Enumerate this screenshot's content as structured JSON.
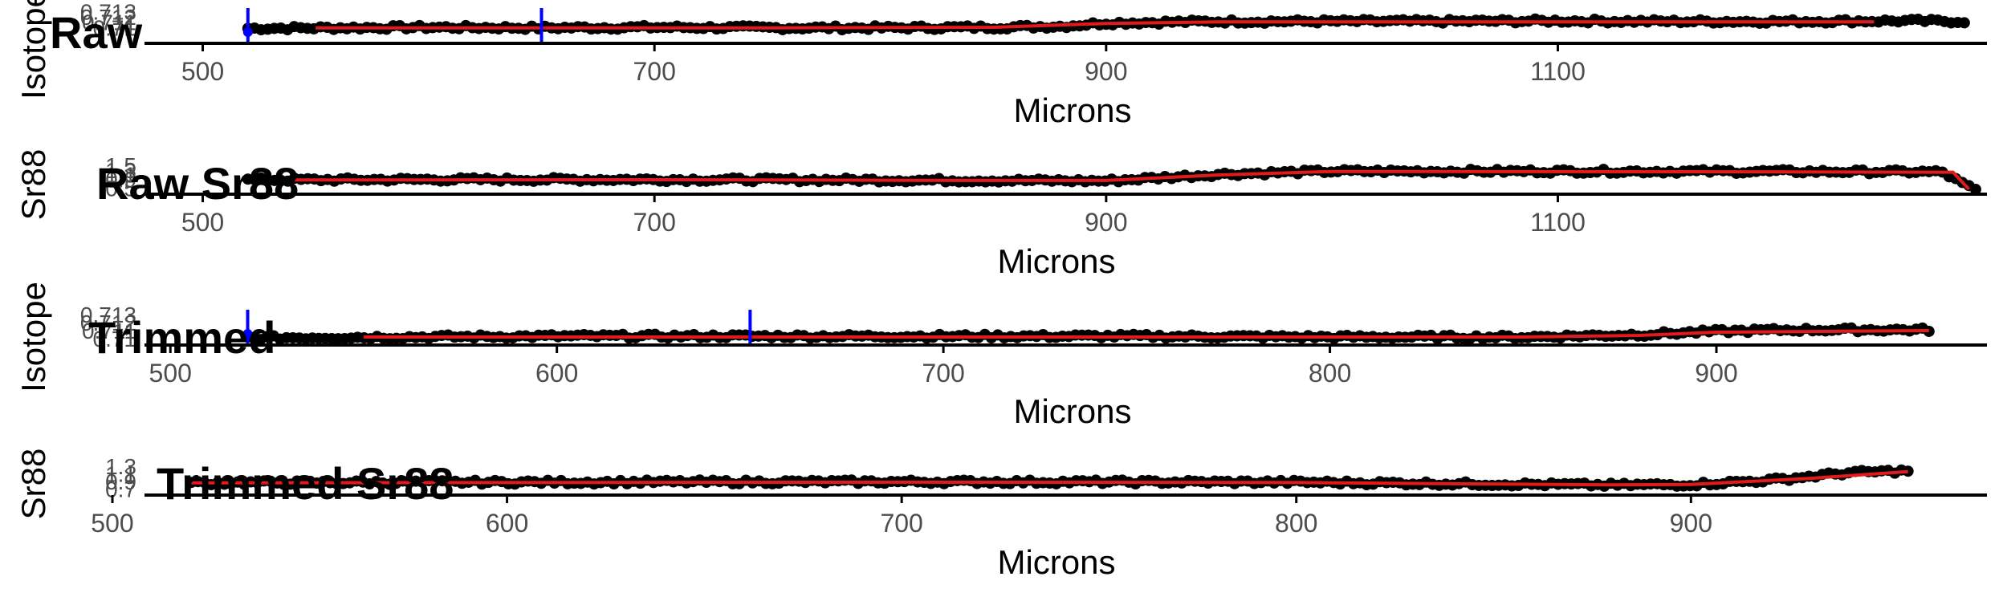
{
  "colors": {
    "points": "#000000",
    "smooth_line": "#e31a1c",
    "marker": "#0000ff",
    "axis": "#000000",
    "tick_text": "#4d4d4d"
  },
  "chart_data": [
    {
      "type": "scatter",
      "title": "Raw",
      "xlabel": "Microns",
      "ylabel": "Isotope",
      "x_range": [
        460,
        1290
      ],
      "y_range": [
        0.7075,
        0.7135
      ],
      "xticks": [
        500,
        700,
        900,
        1100
      ],
      "yticks": [
        0.71,
        0.711,
        0.712,
        0.713
      ],
      "x_start": 520,
      "x_end": 1280,
      "vlines": [
        520,
        650
      ],
      "series": [
        {
          "kind": "points",
          "values": [
            [
              520,
              0.71
            ],
            [
              560,
              0.7101
            ],
            [
              600,
              0.7102
            ],
            [
              650,
              0.7101
            ],
            [
              700,
              0.7102
            ],
            [
              750,
              0.7101
            ],
            [
              800,
              0.7101
            ],
            [
              850,
              0.7102
            ],
            [
              880,
              0.7104
            ],
            [
              900,
              0.711
            ],
            [
              950,
              0.7113
            ],
            [
              1000,
              0.7113
            ],
            [
              1050,
              0.7113
            ],
            [
              1100,
              0.7114
            ],
            [
              1150,
              0.7113
            ],
            [
              1200,
              0.7113
            ],
            [
              1250,
              0.7114
            ],
            [
              1280,
              0.7113
            ]
          ]
        },
        {
          "kind": "line",
          "values": [
            [
              550,
              0.7101
            ],
            [
              650,
              0.7101
            ],
            [
              750,
              0.7101
            ],
            [
              850,
              0.7102
            ],
            [
              900,
              0.7109
            ],
            [
              950,
              0.7112
            ],
            [
              1050,
              0.7112
            ],
            [
              1150,
              0.7112
            ],
            [
              1240,
              0.7112
            ]
          ]
        }
      ]
    },
    {
      "type": "scatter",
      "title": "Raw Sr88",
      "xlabel": "Microns",
      "ylabel": "Sr88",
      "x_range": [
        460,
        1290
      ],
      "y_range": [
        0.35,
        1.75
      ],
      "xticks": [
        500,
        700,
        900,
        1100
      ],
      "yticks": [
        0.5,
        0.9,
        1.1,
        1.3,
        1.5
      ],
      "x_start": 520,
      "x_end": 1285,
      "vlines": [],
      "series": [
        {
          "kind": "points",
          "values": [
            [
              520,
              0.9
            ],
            [
              600,
              0.92
            ],
            [
              700,
              0.92
            ],
            [
              800,
              0.9
            ],
            [
              850,
              0.88
            ],
            [
              900,
              0.86
            ],
            [
              950,
              1.15
            ],
            [
              1000,
              1.28
            ],
            [
              1100,
              1.28
            ],
            [
              1200,
              1.27
            ],
            [
              1270,
              1.25
            ],
            [
              1280,
              0.7
            ],
            [
              1285,
              0.45
            ]
          ]
        },
        {
          "kind": "line",
          "values": [
            [
              540,
              0.9
            ],
            [
              700,
              0.91
            ],
            [
              850,
              0.88
            ],
            [
              900,
              0.88
            ],
            [
              950,
              1.12
            ],
            [
              1000,
              1.27
            ],
            [
              1150,
              1.26
            ],
            [
              1275,
              1.24
            ],
            [
              1282,
              0.5
            ]
          ]
        }
      ]
    },
    {
      "type": "scatter",
      "title": "Trimmed",
      "xlabel": "Microns",
      "ylabel": "Isotope",
      "x_range": [
        485,
        970
      ],
      "y_range": [
        0.7095,
        0.7135
      ],
      "xticks": [
        500,
        600,
        700,
        800,
        900
      ],
      "yticks": [
        0.71,
        0.711,
        0.712,
        0.713
      ],
      "x_start": 520,
      "x_end": 955,
      "vlines": [
        520,
        650
      ],
      "series": [
        {
          "kind": "points",
          "values": [
            [
              520,
              0.7102
            ],
            [
              560,
              0.7103
            ],
            [
              600,
              0.7104
            ],
            [
              650,
              0.7104
            ],
            [
              700,
              0.7104
            ],
            [
              750,
              0.7104
            ],
            [
              800,
              0.7103
            ],
            [
              850,
              0.7103
            ],
            [
              880,
              0.7106
            ],
            [
              900,
              0.711
            ],
            [
              920,
              0.7112
            ],
            [
              955,
              0.7112
            ]
          ]
        },
        {
          "kind": "line",
          "values": [
            [
              550,
              0.7103
            ],
            [
              650,
              0.7103
            ],
            [
              750,
              0.7103
            ],
            [
              850,
              0.7103
            ],
            [
              880,
              0.7105
            ],
            [
              900,
              0.7109
            ],
            [
              955,
              0.7111
            ]
          ]
        }
      ]
    },
    {
      "type": "scatter",
      "title": "Trimmed Sr88",
      "xlabel": "Microns",
      "ylabel": "Sr88",
      "x_range": [
        500,
        975
      ],
      "y_range": [
        0.6,
        1.45
      ],
      "xticks": [
        500,
        600,
        700,
        800,
        900
      ],
      "yticks": [
        0.7,
        0.9,
        1.1,
        1.3
      ],
      "x_start": 520,
      "x_end": 955,
      "vlines": [],
      "series": [
        {
          "kind": "points",
          "values": [
            [
              520,
              0.88
            ],
            [
              600,
              0.9
            ],
            [
              700,
              0.91
            ],
            [
              800,
              0.9
            ],
            [
              850,
              0.85
            ],
            [
              880,
              0.82
            ],
            [
              900,
              0.84
            ],
            [
              920,
              0.95
            ],
            [
              940,
              1.15
            ],
            [
              955,
              1.2
            ]
          ]
        },
        {
          "kind": "line",
          "values": [
            [
              520,
              0.88
            ],
            [
              700,
              0.9
            ],
            [
              800,
              0.89
            ],
            [
              880,
              0.83
            ],
            [
              900,
              0.84
            ],
            [
              930,
              1.0
            ],
            [
              955,
              1.18
            ]
          ]
        }
      ]
    }
  ]
}
